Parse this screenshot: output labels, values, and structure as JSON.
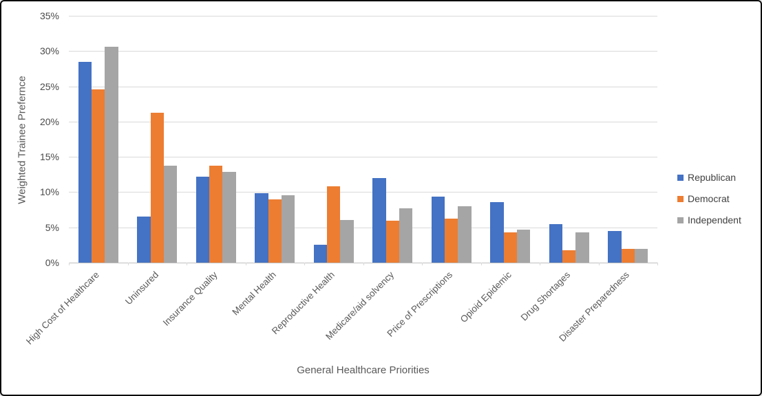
{
  "chart_data": {
    "type": "bar",
    "title": "",
    "xlabel": "General Healthcare Priorities",
    "ylabel": "Weighted Trainee Prefernce",
    "ylim": [
      0,
      35
    ],
    "ytick_step": 5,
    "ytick_suffix": "%",
    "grid": true,
    "legend_position": "right",
    "categories": [
      "High Cost of Healthcare",
      "Uninsured",
      "Insurance Quality",
      "Mental Health",
      "Reproductive Health",
      "Medicare/aid solvency",
      "Price of Prescriptions",
      "Opioid Epidemic",
      "Drug Shortages",
      "Disaster Preparedness"
    ],
    "series": [
      {
        "name": "Republican",
        "color": "#4472C4",
        "values": [
          28.5,
          6.5,
          12.2,
          9.8,
          2.5,
          12.0,
          9.4,
          8.6,
          5.5,
          4.5
        ]
      },
      {
        "name": "Democrat",
        "color": "#ED7D31",
        "values": [
          24.6,
          21.3,
          13.7,
          9.0,
          10.8,
          5.9,
          6.2,
          4.3,
          1.8,
          2.0
        ]
      },
      {
        "name": "Independent",
        "color": "#A5A5A5",
        "values": [
          30.6,
          13.7,
          12.9,
          9.6,
          6.0,
          7.7,
          8.0,
          4.7,
          4.3,
          2.0
        ]
      }
    ],
    "colors": {
      "gridline": "#d9d9d9",
      "axis_line": "#bfbfbf",
      "tick_text": "#4a4a4a",
      "axis_title_text": "#595959",
      "legend_text": "#404040"
    }
  }
}
